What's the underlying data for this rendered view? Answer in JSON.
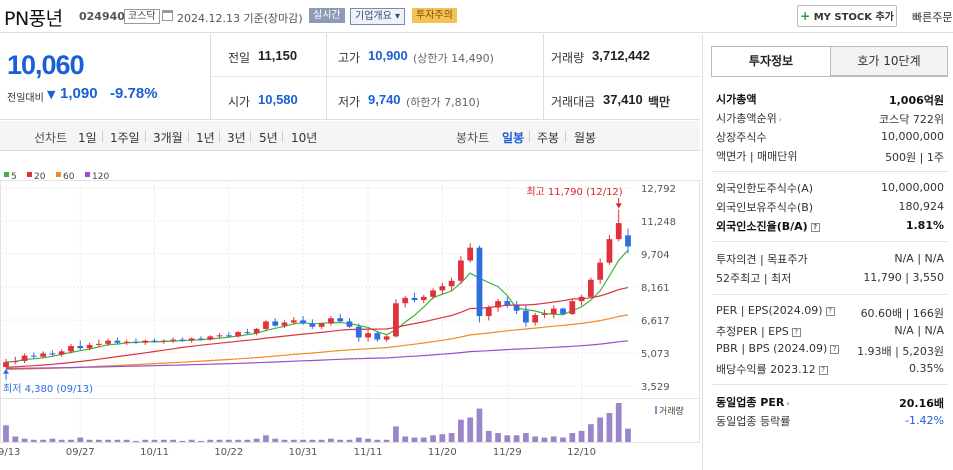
{
  "header": {
    "name": "PN풍년",
    "code": "024940",
    "market": "코스닥",
    "date": "2024.12.13 기준(장마감)",
    "tag_realtime": "실시간",
    "tag_info": "기업개요 ▾",
    "tag_warning": "투자주의",
    "mystock_label": "MY STOCK 추가",
    "quick_order": "빠른주문"
  },
  "price": {
    "current": "10,060",
    "vs_label": "전일대비",
    "vs_value": "1,090",
    "vs_pct": "-9.78%",
    "prev_label": "전일",
    "prev_value": "11,150",
    "high_label": "고가",
    "high_value": "10,900",
    "upper_limit": "(상한가 14,490)",
    "volume_label": "거래량",
    "volume_value": "3,712,442",
    "open_label": "시가",
    "open_value": "10,580",
    "low_label": "저가",
    "low_value": "9,740",
    "lower_limit": "(하한가 7,810)",
    "amount_label": "거래대금",
    "amount_value": "37,410",
    "amount_unit": "백만"
  },
  "toolbar": {
    "line_chart": "선차트",
    "periods": [
      "1일",
      "1주일",
      "3개월",
      "1년",
      "3년",
      "5년",
      "10년"
    ],
    "candle_chart": "봉차트",
    "candle_periods": [
      "일봉",
      "주봉",
      "월봉"
    ]
  },
  "chart_data": {
    "type": "candlestick",
    "legend": [
      {
        "name": "5",
        "color": "#3cb43c"
      },
      {
        "name": "20",
        "color": "#e0323c"
      },
      {
        "name": "60",
        "color": "#f08c28"
      },
      {
        "name": "120",
        "color": "#9650c8"
      }
    ],
    "y_ticks": [
      "12,792",
      "11,248",
      "9,704",
      "8,161",
      "6,617",
      "5,073",
      "3,529"
    ],
    "y_range": [
      3529,
      12792
    ],
    "x_ticks": [
      "09/13",
      "09/27",
      "10/11",
      "10/22",
      "10/31",
      "11/11",
      "11/20",
      "11/29",
      "12/10"
    ],
    "max_label": "최고 11,790 (12/12)",
    "min_label": "최저 4,380 (09/13)",
    "volume_label": "거래량",
    "candles": [
      [
        4420,
        4800,
        4380,
        4650
      ],
      [
        4650,
        4900,
        4550,
        4700
      ],
      [
        4700,
        5050,
        4600,
        4950
      ],
      [
        4950,
        5100,
        4800,
        4900
      ],
      [
        4900,
        5150,
        4850,
        5050
      ],
      [
        5050,
        5200,
        4950,
        5000
      ],
      [
        5000,
        5250,
        4900,
        5150
      ],
      [
        5150,
        5500,
        5050,
        5400
      ],
      [
        5400,
        5650,
        5200,
        5300
      ],
      [
        5300,
        5550,
        5200,
        5450
      ],
      [
        5450,
        5700,
        5350,
        5500
      ],
      [
        5500,
        5750,
        5400,
        5650
      ],
      [
        5650,
        5800,
        5500,
        5550
      ],
      [
        5550,
        5700,
        5450,
        5600
      ],
      [
        5600,
        5750,
        5500,
        5550
      ],
      [
        5550,
        5700,
        5450,
        5650
      ],
      [
        5650,
        5750,
        5550,
        5600
      ],
      [
        5600,
        5700,
        5500,
        5650
      ],
      [
        5650,
        5800,
        5550,
        5700
      ],
      [
        5700,
        5800,
        5600,
        5650
      ],
      [
        5650,
        5800,
        5550,
        5750
      ],
      [
        5750,
        5850,
        5650,
        5700
      ],
      [
        5700,
        5900,
        5650,
        5850
      ],
      [
        5850,
        6000,
        5750,
        5900
      ],
      [
        5900,
        6050,
        5800,
        5850
      ],
      [
        5850,
        6100,
        5800,
        6050
      ],
      [
        6050,
        6200,
        5950,
        6000
      ],
      [
        6000,
        6250,
        5900,
        6200
      ],
      [
        6200,
        6600,
        6100,
        6550
      ],
      [
        6550,
        6700,
        6300,
        6350
      ],
      [
        6350,
        6600,
        6250,
        6500
      ],
      [
        6500,
        6750,
        6400,
        6600
      ],
      [
        6600,
        6800,
        6400,
        6450
      ],
      [
        6450,
        6650,
        6200,
        6300
      ],
      [
        6300,
        6500,
        6200,
        6450
      ],
      [
        6450,
        6800,
        6350,
        6700
      ],
      [
        6700,
        6900,
        6500,
        6550
      ],
      [
        6550,
        6700,
        6250,
        6300
      ],
      [
        6300,
        6450,
        5600,
        5800
      ],
      [
        5800,
        6200,
        5600,
        6000
      ],
      [
        6000,
        6100,
        5600,
        5700
      ],
      [
        5700,
        5900,
        5600,
        5850
      ],
      [
        5850,
        7600,
        5800,
        7400
      ],
      [
        7400,
        7750,
        7200,
        7650
      ],
      [
        7650,
        7900,
        7450,
        7550
      ],
      [
        7550,
        7800,
        7400,
        7700
      ],
      [
        7700,
        8100,
        7600,
        8000
      ],
      [
        8000,
        8350,
        7800,
        8200
      ],
      [
        8200,
        8600,
        8000,
        8450
      ],
      [
        8450,
        9600,
        8300,
        9400
      ],
      [
        9400,
        10200,
        9300,
        10000
      ],
      [
        10000,
        10100,
        6500,
        6800
      ],
      [
        6800,
        7300,
        6600,
        7200
      ],
      [
        7200,
        7600,
        7000,
        7500
      ],
      [
        7500,
        7700,
        7200,
        7300
      ],
      [
        7300,
        7500,
        6900,
        7050
      ],
      [
        7050,
        7300,
        6300,
        6500
      ],
      [
        6500,
        6950,
        6350,
        6850
      ],
      [
        6850,
        7100,
        6700,
        6900
      ],
      [
        6900,
        7300,
        6700,
        7150
      ],
      [
        7150,
        7200,
        6850,
        6900
      ],
      [
        6900,
        7600,
        6850,
        7500
      ],
      [
        7500,
        7800,
        7300,
        7700
      ],
      [
        7700,
        8600,
        7650,
        8500
      ],
      [
        8500,
        9500,
        8300,
        9300
      ],
      [
        9300,
        10600,
        9200,
        10400
      ],
      [
        10400,
        11790,
        10300,
        11150
      ],
      [
        10580,
        10900,
        9740,
        10060
      ]
    ],
    "volumes": [
      15,
      5,
      3,
      2,
      2,
      3,
      2,
      2,
      4,
      2,
      2,
      2,
      2,
      2,
      1,
      2,
      2,
      2,
      2,
      1,
      2,
      1,
      2,
      2,
      2,
      2,
      2,
      3,
      6,
      3,
      2,
      2,
      2,
      2,
      2,
      3,
      2,
      2,
      4,
      3,
      2,
      2,
      14,
      5,
      4,
      4,
      6,
      7,
      8,
      20,
      22,
      30,
      10,
      8,
      6,
      6,
      8,
      5,
      4,
      5,
      4,
      8,
      10,
      16,
      22,
      26,
      35,
      12
    ]
  },
  "right_panel": {
    "tab_invest": "투자정보",
    "tab_hoga": "호가 10단계",
    "rows": [
      {
        "label": "시가총액",
        "value": "1,006억원",
        "bold": true
      },
      {
        "label": "시가총액순위",
        "value": "코스닥 722위"
      },
      {
        "label": "상장주식수",
        "value": "10,000,000"
      },
      {
        "label": "액면가 | 매매단위",
        "value": "500원 | 1주"
      },
      {
        "label": "외국인한도주식수(A)",
        "value": "10,000,000"
      },
      {
        "label": "외국인보유주식수(B)",
        "value": "180,924"
      },
      {
        "label": "외국인소진율(B/A)",
        "value": "1.81%",
        "bold": true
      },
      {
        "label": "투자의견 | 목표주가",
        "value": "N/A | N/A"
      },
      {
        "label": "52주최고 | 최저",
        "value": "11,790 | 3,550"
      },
      {
        "label": "PER | EPS(2024.09)",
        "value": "60.60배 | 166원"
      },
      {
        "label": "추정PER | EPS",
        "value": "N/A | N/A"
      },
      {
        "label": "PBR | BPS (2024.09)",
        "value": "1.93배 | 5,203원"
      },
      {
        "label": "배당수익률 2023.12",
        "value": "0.35%"
      },
      {
        "label": "동일업종 PER",
        "value": "20.16배",
        "bold": true
      },
      {
        "label": "동일업종 등락률",
        "value": "-1.42%",
        "blue": true
      }
    ]
  }
}
